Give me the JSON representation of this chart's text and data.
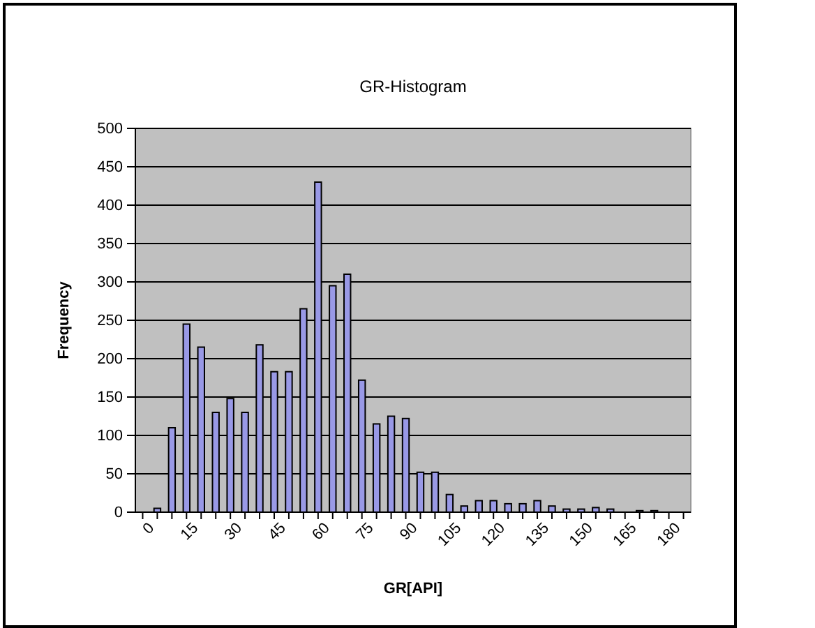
{
  "chart_data": {
    "type": "bar",
    "title": "GR-Histogram",
    "xlabel": "GR[API]",
    "ylabel": "Frequency",
    "categories": [
      "0",
      null,
      null,
      "15",
      null,
      null,
      "30",
      null,
      null,
      "45",
      null,
      null,
      "60",
      null,
      null,
      "75",
      null,
      null,
      "90",
      null,
      null,
      "105",
      null,
      null,
      "120",
      null,
      null,
      "135",
      null,
      null,
      "150",
      null,
      null,
      "165",
      null,
      null,
      "180",
      null
    ],
    "values": [
      0,
      5,
      110,
      245,
      215,
      130,
      148,
      130,
      218,
      183,
      183,
      265,
      430,
      295,
      310,
      172,
      115,
      125,
      122,
      52,
      52,
      23,
      8,
      15,
      15,
      11,
      11,
      15,
      8,
      4,
      4,
      6,
      4,
      0,
      2,
      2,
      0,
      0
    ],
    "color": "#9999e6",
    "ylim": [
      0,
      500
    ],
    "yticks": [
      0,
      50,
      100,
      150,
      200,
      250,
      300,
      350,
      400,
      450,
      500
    ],
    "grid": "y"
  }
}
